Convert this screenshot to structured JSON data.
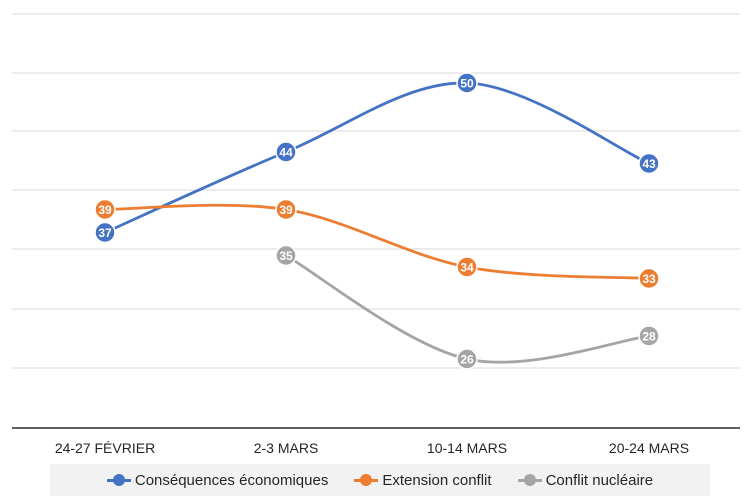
{
  "chart_data": {
    "type": "line",
    "categories": [
      "24-27 FÉVRIER",
      "2-3 MARS",
      "10-14 MARS",
      "20-24 MARS"
    ],
    "ylim": [
      20,
      56
    ],
    "grid": true,
    "legend_position": "bottom",
    "series": [
      {
        "name": "Conséquences économiques",
        "color": "#4472c4",
        "values": [
          37,
          44,
          50,
          43
        ]
      },
      {
        "name": "Extension conflit",
        "color": "#ed7d31",
        "values": [
          39,
          39,
          34,
          33
        ]
      },
      {
        "name": "Conflit nucléaire",
        "color": "#a5a5a5",
        "values": [
          null,
          35,
          26,
          28
        ]
      }
    ]
  }
}
